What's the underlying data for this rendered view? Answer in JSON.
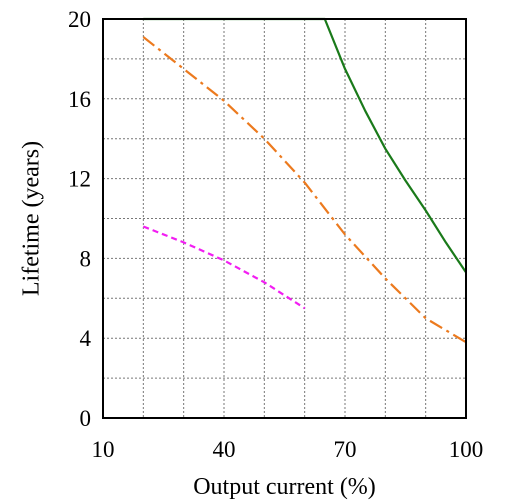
{
  "chart_data": {
    "type": "line",
    "title": "",
    "xlabel": "Output current (%)",
    "ylabel": "Lifetime (years)",
    "xlim": [
      10,
      100
    ],
    "ylim": [
      0,
      20
    ],
    "x_ticks": [
      10,
      40,
      70,
      100
    ],
    "x_tick_labels": [
      "10",
      "40",
      "70",
      "100"
    ],
    "y_ticks": [
      0,
      4,
      8,
      12,
      16,
      20
    ],
    "y_tick_labels": [
      "0",
      "4",
      "8",
      "12",
      "16",
      "20"
    ],
    "x_grid_step": 10,
    "y_grid_step": 2,
    "grid": true,
    "legend": "none",
    "series": [
      {
        "color": "#1a7a1a",
        "line_style": "solid",
        "x": [
          20,
          40,
          60,
          65,
          70,
          75,
          80,
          85,
          90,
          95,
          100
        ],
        "y": [
          20,
          20,
          20,
          20,
          17.5,
          15.4,
          13.5,
          11.9,
          10.4,
          8.8,
          7.3
        ]
      },
      {
        "color": "#ec7a1e",
        "line_style": "dash-dot",
        "x": [
          20,
          30,
          40,
          50,
          60,
          70,
          80,
          90,
          100
        ],
        "y": [
          19.1,
          17.5,
          15.9,
          14.0,
          11.8,
          9.2,
          7.0,
          5.0,
          3.8
        ]
      },
      {
        "color": "#f21ef2",
        "line_style": "dashed",
        "x": [
          20,
          30,
          40,
          50,
          60
        ],
        "y": [
          9.6,
          8.8,
          7.9,
          6.8,
          5.5
        ]
      }
    ]
  }
}
